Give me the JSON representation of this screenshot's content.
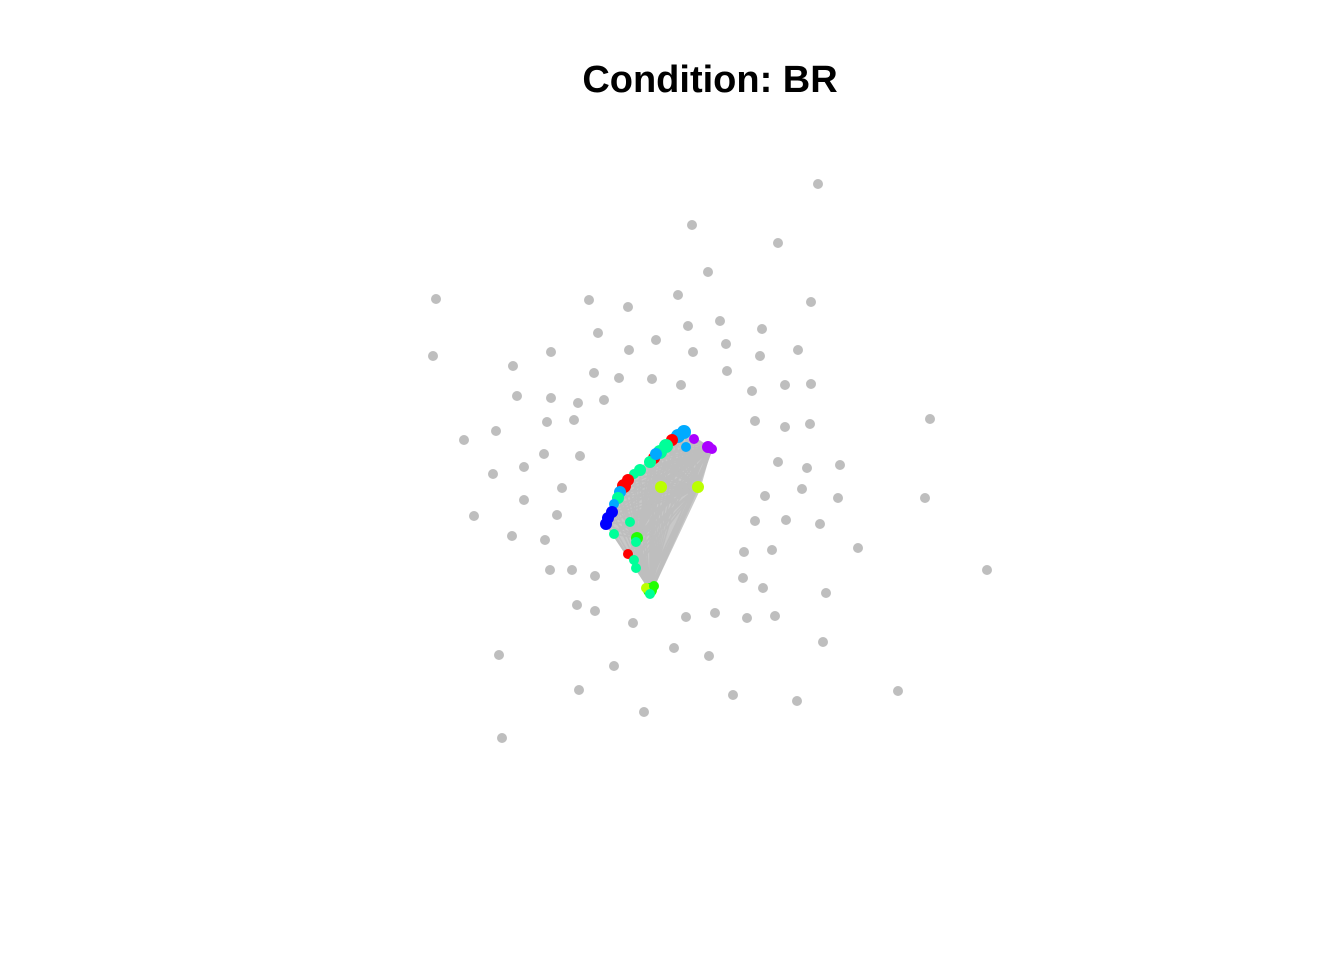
{
  "title": "Condition: BR",
  "colors": {
    "edge": "#bebebe",
    "background": "#ffffff",
    "isolated_node": "#bebebe",
    "red": "#ff0000",
    "blue": "#0000ff",
    "sky_blue": "#00aaff",
    "spring_green": "#00ff99",
    "green": "#22ff00",
    "yellow_green": "#bbff00",
    "purple": "#aa00ff"
  },
  "network": {
    "isolated_node_count": 96,
    "connected_cluster_colors": [
      "red",
      "blue",
      "sky_blue",
      "spring_green",
      "green",
      "yellow_green",
      "purple"
    ]
  }
}
